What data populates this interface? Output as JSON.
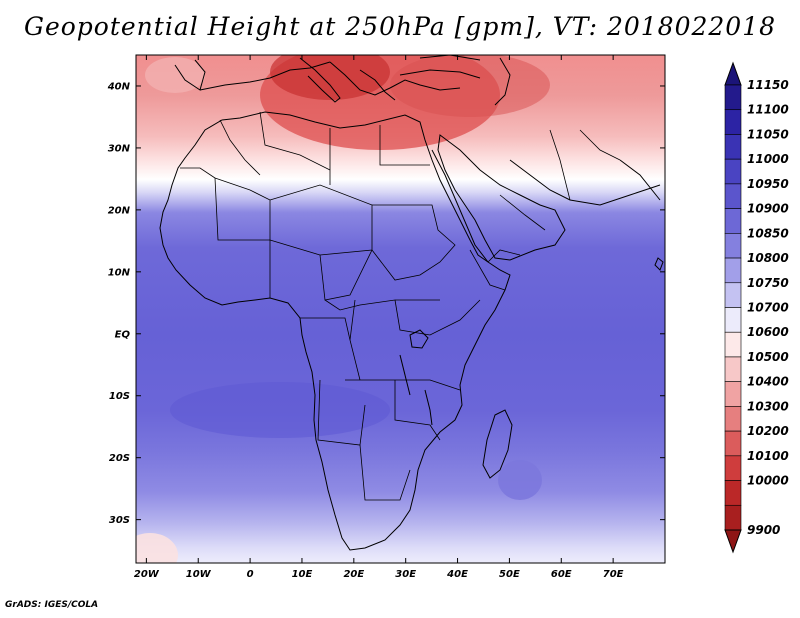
{
  "title": "Geopotential Height at 250hPa [gpm], VT: 2018022018",
  "credit": "GrADS: IGES/COLA",
  "map": {
    "variable": "Geopotential Height",
    "level": "250hPa",
    "units": "gpm",
    "valid_time": "2018022018",
    "lat_labels": [
      "40N",
      "30N",
      "20N",
      "10N",
      "EQ",
      "10S",
      "20S",
      "30S"
    ],
    "lat_values": [
      40,
      30,
      20,
      10,
      0,
      -10,
      -20,
      -30
    ],
    "lon_labels": [
      "20W",
      "10W",
      "0",
      "10E",
      "20E",
      "30E",
      "40E",
      "50E",
      "60E",
      "70E"
    ],
    "lon_values": [
      -20,
      -10,
      0,
      10,
      20,
      30,
      40,
      50,
      60,
      70
    ],
    "lat_range": [
      -37,
      45
    ],
    "lon_range": [
      -22,
      80
    ]
  },
  "colorbar": {
    "labels": [
      "11150",
      "11100",
      "11050",
      "11000",
      "10950",
      "10900",
      "10850",
      "10800",
      "10750",
      "10700",
      "10600",
      "10500",
      "10400",
      "10300",
      "10200",
      "10100",
      "10000",
      "9900"
    ],
    "colors": [
      "#231a8c",
      "#2c23a4",
      "#3a33b4",
      "#4a44c2",
      "#5b55cc",
      "#6d68d6",
      "#8480df",
      "#a29fe9",
      "#c4c2f2",
      "#ecebfb",
      "#fde9e9",
      "#f7c8c8",
      "#f0a3a3",
      "#e67f7f",
      "#db5c5c",
      "#cf3d3d",
      "#bb2828",
      "#a81f1f"
    ],
    "top_color": "#1b1478",
    "bottom_color": "#8e1515"
  }
}
